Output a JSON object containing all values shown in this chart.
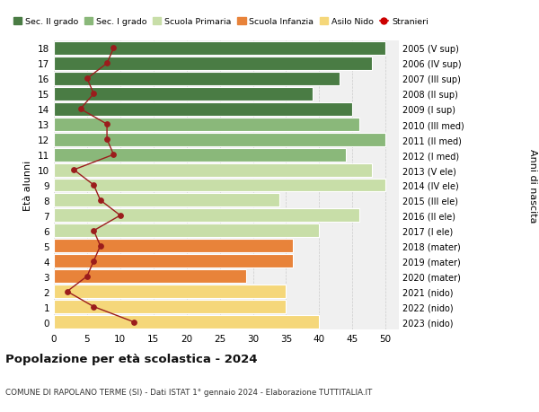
{
  "ages": [
    0,
    1,
    2,
    3,
    4,
    5,
    6,
    7,
    8,
    9,
    10,
    11,
    12,
    13,
    14,
    15,
    16,
    17,
    18
  ],
  "years": [
    "2023 (nido)",
    "2022 (nido)",
    "2021 (nido)",
    "2020 (mater)",
    "2019 (mater)",
    "2018 (mater)",
    "2017 (I ele)",
    "2016 (II ele)",
    "2015 (III ele)",
    "2014 (IV ele)",
    "2013 (V ele)",
    "2012 (I med)",
    "2011 (II med)",
    "2010 (III med)",
    "2009 (I sup)",
    "2008 (II sup)",
    "2007 (III sup)",
    "2006 (IV sup)",
    "2005 (V sup)"
  ],
  "bar_values": [
    40,
    35,
    35,
    29,
    36,
    36,
    40,
    46,
    34,
    50,
    48,
    44,
    50,
    46,
    45,
    39,
    43,
    48,
    50
  ],
  "bar_colors": [
    "#f5d77a",
    "#f5d77a",
    "#f5d77a",
    "#e8833a",
    "#e8833a",
    "#e8833a",
    "#c8dea8",
    "#c8dea8",
    "#c8dea8",
    "#c8dea8",
    "#c8dea8",
    "#8ab87a",
    "#8ab87a",
    "#8ab87a",
    "#4a7c44",
    "#4a7c44",
    "#4a7c44",
    "#4a7c44",
    "#4a7c44"
  ],
  "stranieri": [
    12,
    6,
    2,
    5,
    6,
    7,
    6,
    10,
    7,
    6,
    3,
    9,
    8,
    8,
    4,
    6,
    5,
    8,
    9
  ],
  "stranieri_color": "#9b1c1c",
  "legend_labels": [
    "Sec. II grado",
    "Sec. I grado",
    "Scuola Primaria",
    "Scuola Infanzia",
    "Asilo Nido",
    "Stranieri"
  ],
  "legend_colors": [
    "#4a7c44",
    "#8ab87a",
    "#c8dea8",
    "#e8833a",
    "#f5d77a",
    "#cc0000"
  ],
  "xlabel_ticks": [
    0,
    5,
    10,
    15,
    20,
    25,
    30,
    35,
    40,
    45,
    50
  ],
  "ylabel_left": "Età alunni",
  "ylabel_right": "Anni di nascita",
  "title": "Popolazione per età scolastica - 2024",
  "subtitle": "COMUNE DI RAPOLANO TERME (SI) - Dati ISTAT 1° gennaio 2024 - Elaborazione TUTTITALIA.IT",
  "bg_color": "#f0f0f0",
  "grid_color": "#cccccc",
  "xlim": [
    0,
    52
  ]
}
